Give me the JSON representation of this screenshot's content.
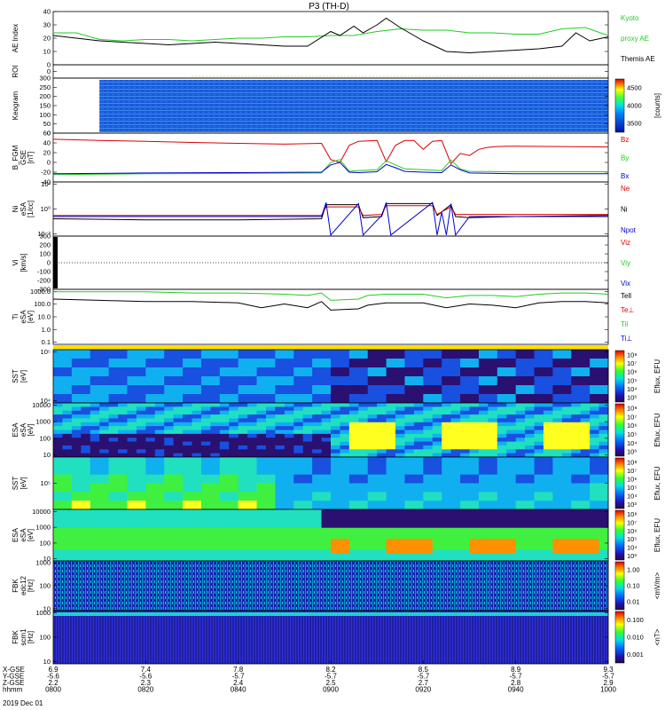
{
  "chart_data": {
    "type": "stacked-timeseries",
    "title": "P3 (TH-D)",
    "x": {
      "tick_labels_hhmm": [
        "0800",
        "0820",
        "0840",
        "0900",
        "0920",
        "0940",
        "1000"
      ],
      "x_gse": [
        "6.9",
        "7.4",
        "7.8",
        "8.2",
        "8.5",
        "8.9",
        "9.3"
      ],
      "y_gse": [
        "-5.6",
        "-5.6",
        "-5.7",
        "-5.7",
        "-5.7",
        "-5.7",
        "-5.7"
      ],
      "z_gse": [
        "2.2",
        "2.3",
        "2.4",
        "2.5",
        "2.7",
        "2.8",
        "2.9"
      ],
      "row_labels": [
        "X-GSE",
        "Y-GSE",
        "Z-GSE",
        "hhmm"
      ],
      "date": "2019 Dec 01"
    },
    "panels": [
      {
        "id": "ae",
        "ylabel": "AE Index",
        "ylim": [
          0,
          40
        ],
        "ticks": [
          "0",
          "10",
          "20",
          "30",
          "40"
        ],
        "legend": [
          {
            "text": "Kyoto",
            "color": "#22cc22"
          },
          {
            "text": "proxy AE",
            "color": "#22cc22"
          },
          {
            "text": "Themis AE",
            "color": "#000000"
          }
        ],
        "series": [
          {
            "name": "Kyoto proxy AE",
            "color": "#22cc22",
            "t": [
              0,
              5,
              10,
              15,
              20,
              25,
              30,
              35,
              40,
              45,
              50,
              55,
              60,
              65,
              70,
              75,
              80,
              85,
              90,
              95,
              100,
              105,
              110,
              115,
              120
            ],
            "v": [
              24,
              24,
              19,
              18,
              19,
              19,
              18,
              19,
              20,
              20,
              21,
              21,
              22,
              22,
              25,
              27,
              26,
              26,
              24,
              24,
              23,
              23,
              27,
              28,
              22
            ]
          },
          {
            "name": "Themis AE",
            "color": "#000000",
            "t": [
              0,
              5,
              10,
              15,
              20,
              25,
              30,
              35,
              40,
              45,
              50,
              55,
              60,
              62,
              65,
              67,
              70,
              72,
              75,
              78,
              80,
              85,
              90,
              95,
              100,
              105,
              110,
              113,
              116,
              120
            ],
            "v": [
              22,
              20,
              18,
              17,
              16,
              15,
              16,
              17,
              16,
              15,
              14,
              14,
              25,
              22,
              29,
              24,
              30,
              35,
              28,
              22,
              18,
              10,
              9,
              10,
              11,
              12,
              14,
              24,
              18,
              21
            ]
          }
        ]
      },
      {
        "id": "roi",
        "ylabel": "ROI",
        "ylim": [
          0,
          1
        ],
        "ticks": [
          "0"
        ]
      },
      {
        "id": "kgm",
        "ylabel": "Keogram",
        "ylim": [
          0,
          300
        ],
        "ticks": [
          "0",
          "50",
          "100",
          "150",
          "200",
          "250",
          "300"
        ],
        "colorbar": {
          "label": "[counts]",
          "ticks": [
            "3500",
            "4000",
            "4500"
          ],
          "range": [
            3300,
            4700
          ]
        }
      },
      {
        "id": "bfgm",
        "ylabel": "B_FGM",
        "sub": [
          "GSE",
          "[nT]"
        ],
        "ylim": [
          -40,
          80
        ],
        "ticks": [
          "-40",
          "-20",
          "0",
          "20",
          "40",
          "60"
        ],
        "legend": [
          {
            "text": "Bz",
            "color": "#dd0000"
          },
          {
            "text": "By",
            "color": "#22cc22"
          },
          {
            "text": "Bx",
            "color": "#0000cc"
          }
        ],
        "series": [
          {
            "name": "Bz",
            "color": "#dd0000",
            "t": [
              0,
              10,
              20,
              30,
              40,
              50,
              58,
              60,
              62,
              64,
              66,
              70,
              72,
              74,
              76,
              78,
              80,
              82,
              84,
              86,
              88,
              90,
              92,
              94,
              96,
              98,
              100,
              110,
              120
            ],
            "v": [
              65,
              62,
              60,
              57,
              55,
              53,
              55,
              15,
              8,
              50,
              60,
              62,
              10,
              50,
              62,
              62,
              40,
              60,
              62,
              5,
              30,
              25,
              40,
              45,
              47,
              48,
              48,
              47,
              46
            ]
          },
          {
            "name": "By",
            "color": "#22cc22",
            "t": [
              0,
              20,
              40,
              58,
              60,
              62,
              64,
              66,
              70,
              72,
              74,
              76,
              80,
              84,
              86,
              88,
              90,
              100,
              120
            ],
            "v": [
              -22,
              -20,
              -19,
              -18,
              8,
              15,
              -14,
              -12,
              -10,
              12,
              2,
              -8,
              -10,
              -12,
              14,
              -8,
              -14,
              -15,
              -15
            ]
          },
          {
            "name": "Bx",
            "color": "#0000cc",
            "t": [
              0,
              20,
              40,
              58,
              60,
              62,
              64,
              66,
              70,
              72,
              74,
              76,
              80,
              84,
              86,
              88,
              90,
              100,
              120
            ],
            "v": [
              -20,
              -18,
              -17,
              -16,
              2,
              8,
              -16,
              -17,
              -15,
              3,
              -5,
              -14,
              -16,
              -17,
              2,
              -10,
              -18,
              -20,
              -20
            ]
          }
        ]
      },
      {
        "id": "ni",
        "ylabel": "Ni",
        "sub": [
          "eSA",
          "[1/cc]"
        ],
        "ylim": [
          -2,
          3
        ],
        "ticks": [
          "10⁻²",
          "10⁰",
          "10²"
        ],
        "legend": [
          {
            "text": "Ne",
            "color": "#dd0000"
          },
          {
            "text": "Ni",
            "color": "#000000"
          },
          {
            "text": "Npot",
            "color": "#0000cc"
          }
        ],
        "series": [
          {
            "name": "Ni",
            "color": "#000000",
            "t": [
              0,
              20,
              40,
              58,
              59,
              66,
              67,
              71,
              72,
              82,
              83,
              86,
              87,
              90,
              100,
              120
            ],
            "v": [
              -0.4,
              -0.5,
              -0.5,
              -0.4,
              0.9,
              0.9,
              -0.3,
              -0.2,
              1.0,
              1.0,
              -0.1,
              0.9,
              -0.2,
              -0.3,
              -0.2,
              -0.1
            ]
          },
          {
            "name": "Ne",
            "color": "#dd0000",
            "t": [
              0,
              20,
              40,
              58,
              59,
              66,
              67,
              71,
              72,
              82,
              83,
              86,
              87,
              90,
              100,
              120
            ],
            "v": [
              -0.1,
              -0.1,
              -0.1,
              -0.1,
              0.7,
              0.7,
              -0.1,
              0.0,
              0.8,
              0.8,
              0.0,
              0.7,
              0.0,
              0.0,
              0.0,
              0.0
            ]
          },
          {
            "name": "Npot",
            "color": "#0000cc",
            "t": [
              0,
              20,
              40,
              58,
              59,
              60,
              66,
              67,
              71,
              72,
              73,
              82,
              83,
              84,
              85,
              86,
              87,
              90,
              100,
              120
            ],
            "v": [
              -0.2,
              -0.2,
              -0.2,
              -0.2,
              1.1,
              -1.9,
              1.0,
              -1.9,
              -0.1,
              1.1,
              -1.9,
              1.1,
              -1.9,
              0.2,
              -1.9,
              1.0,
              -1.9,
              -0.2,
              -0.2,
              -0.2
            ]
          }
        ]
      },
      {
        "id": "vi",
        "ylabel": "Vi",
        "sub": [
          "[km/s]"
        ],
        "ylim": [
          -300,
          300
        ],
        "ticks": [
          "-300",
          "-200",
          "-100",
          "0",
          "100",
          "200",
          "300"
        ],
        "legend": [
          {
            "text": "Viz",
            "color": "#dd0000"
          },
          {
            "text": "Viy",
            "color": "#22cc22"
          },
          {
            "text": "Vix",
            "color": "#0000cc"
          }
        ]
      },
      {
        "id": "ti",
        "ylabel": "Ti",
        "sub": [
          "eSA",
          "[eV]"
        ],
        "ylim": [
          -1,
          3.5
        ],
        "ticks": [
          "0.1",
          "1.0",
          "10.0",
          "100.0",
          "1000.0"
        ],
        "legend": [
          {
            "text": "Tell",
            "color": "#000000"
          },
          {
            "text": "Te⊥",
            "color": "#dd0000"
          },
          {
            "text": "Til",
            "color": "#22cc22"
          },
          {
            "text": "Ti⊥",
            "color": "#0000cc"
          }
        ],
        "series": [
          {
            "name": "Til",
            "color": "#22cc22",
            "t": [
              0,
              10,
              20,
              30,
              40,
              50,
              55,
              58,
              60,
              66,
              68,
              72,
              80,
              85,
              90,
              95,
              100,
              105,
              110,
              115,
              120
            ],
            "v": [
              3.3,
              3.3,
              3.3,
              3.2,
              3.2,
              3.1,
              3.0,
              3.2,
              2.6,
              2.7,
              3.0,
              3.1,
              3.1,
              2.8,
              3.0,
              3.0,
              2.9,
              3.1,
              3.2,
              3.2,
              3.1
            ]
          },
          {
            "name": "Tell",
            "color": "#000000",
            "t": [
              0,
              10,
              20,
              30,
              40,
              45,
              50,
              55,
              58,
              60,
              66,
              68,
              72,
              80,
              85,
              90,
              95,
              100,
              105,
              110,
              115,
              120
            ],
            "v": [
              2.7,
              2.6,
              2.5,
              2.5,
              2.4,
              2.0,
              2.3,
              2.0,
              2.5,
              1.8,
              1.9,
              2.2,
              2.4,
              2.4,
              2.0,
              2.3,
              2.2,
              2.0,
              2.4,
              2.5,
              2.5,
              2.4
            ]
          }
        ]
      },
      {
        "id": "sst1",
        "ylabel": "SST",
        "sub": [
          "[eV]"
        ],
        "ylim": [
          3.5,
          5.5
        ],
        "ticks": [
          "10⁴",
          "10⁵"
        ],
        "colorbar": {
          "label": "Eflux, EFU",
          "ticks": [
            "10³",
            "10⁴",
            "10⁵",
            "10⁶",
            "10⁷",
            "10⁸"
          ]
        }
      },
      {
        "id": "esa1",
        "ylabel": "ESA",
        "sub": [
          "eSA",
          "[eV]"
        ],
        "ylim": [
          0.8,
          4.2
        ],
        "ticks": [
          "10",
          "100",
          "1000",
          "10000"
        ],
        "colorbar": {
          "label": "Eflux, EFU",
          "ticks": [
            "10³",
            "10⁴",
            "10⁵",
            "10⁶",
            "10⁷",
            "10⁸"
          ]
        }
      },
      {
        "id": "sst2",
        "ylabel": "SST",
        "sub": [
          "[eV]"
        ],
        "ylim": [
          4.5,
          6.5
        ],
        "ticks": [
          "10⁵"
        ],
        "colorbar": {
          "label": "Eflux, EFU",
          "ticks": [
            "10³",
            "10⁴",
            "10⁵",
            "10⁶",
            "10⁷",
            "10⁸"
          ]
        }
      },
      {
        "id": "esa2",
        "ylabel": "ESA",
        "sub": [
          "eSA",
          "[eV]"
        ],
        "ylim": [
          0.8,
          4.2
        ],
        "ticks": [
          "10",
          "100",
          "1000",
          "10000"
        ],
        "colorbar": {
          "label": "Eflux, EFU",
          "ticks": [
            "10³",
            "10⁴",
            "10⁵",
            "10⁶",
            "10⁷",
            "10⁸"
          ]
        }
      },
      {
        "id": "fbk1",
        "ylabel": "FBK",
        "sub": [
          "edc12",
          "[Hz]"
        ],
        "ylim": [
          0.5,
          3.2
        ],
        "ticks": [
          "10",
          "100",
          "1000"
        ],
        "colorbar": {
          "label": "<mV/m>",
          "ticks": [
            "0.01",
            "0.10",
            "1.00"
          ]
        }
      },
      {
        "id": "fbk2",
        "ylabel": "FBK",
        "sub": [
          "scm1",
          "[Hz]"
        ],
        "ylim": [
          0.5,
          3.2
        ],
        "ticks": [
          "10",
          "100",
          "1000"
        ],
        "colorbar": {
          "label": "<nT>",
          "ticks": [
            "0.001",
            "0.010",
            "0.100"
          ]
        }
      }
    ]
  },
  "colors": {
    "kyoto": "#22cc22",
    "themis": "#000000",
    "red": "#dd0000",
    "green": "#22cc22",
    "blue": "#0000cc"
  }
}
